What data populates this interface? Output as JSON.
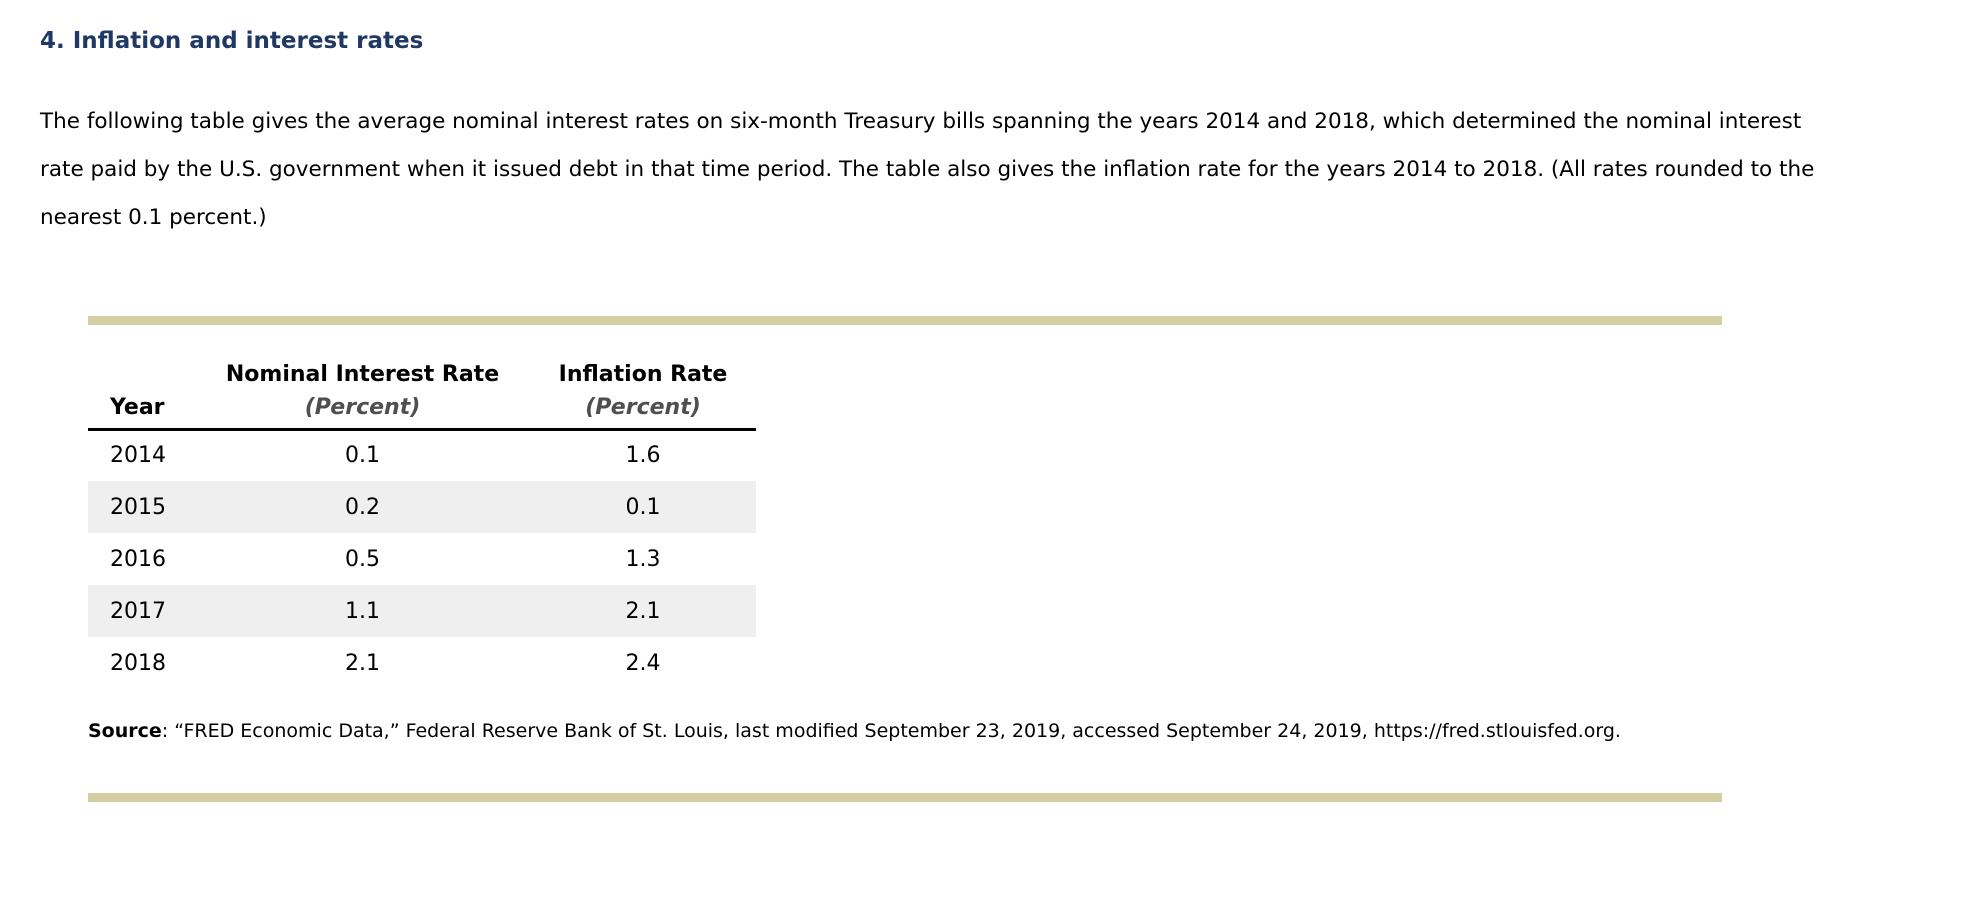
{
  "page": {
    "title": "4. Inflation and interest rates",
    "intro": "The following table gives the average nominal interest rates on six-month Treasury bills spanning the years 2014 and 2018, which determined the nominal interest rate paid by the U.S. government when it issued debt in that time period. The table also gives the inflation rate for the years 2014 to 2018. (All rates rounded to the nearest 0.1 percent.)"
  },
  "table": {
    "columns": [
      {
        "label": "Year",
        "sublabel": ""
      },
      {
        "label": "Nominal Interest Rate",
        "sublabel": "(Percent)"
      },
      {
        "label": "Inflation Rate",
        "sublabel": "(Percent)"
      }
    ],
    "rows": [
      {
        "year": "2014",
        "nominal": "0.1",
        "inflation": "1.6"
      },
      {
        "year": "2015",
        "nominal": "0.2",
        "inflation": "0.1"
      },
      {
        "year": "2016",
        "nominal": "0.5",
        "inflation": "1.3"
      },
      {
        "year": "2017",
        "nominal": "1.1",
        "inflation": "2.1"
      },
      {
        "year": "2018",
        "nominal": "2.1",
        "inflation": "2.4"
      }
    ]
  },
  "source": {
    "label": "Source",
    "text": ": “FRED Economic Data,” Federal Reserve Bank of St. Louis, last modified September 23, 2019, accessed September 24, 2019, https://fred.stlouisfed.org."
  },
  "colors": {
    "heading_navy": "#1f3864",
    "accent_bar_tan": "#d6cea3",
    "alt_row_gray": "#efefef",
    "percent_label_gray": "#4f4f4f"
  }
}
